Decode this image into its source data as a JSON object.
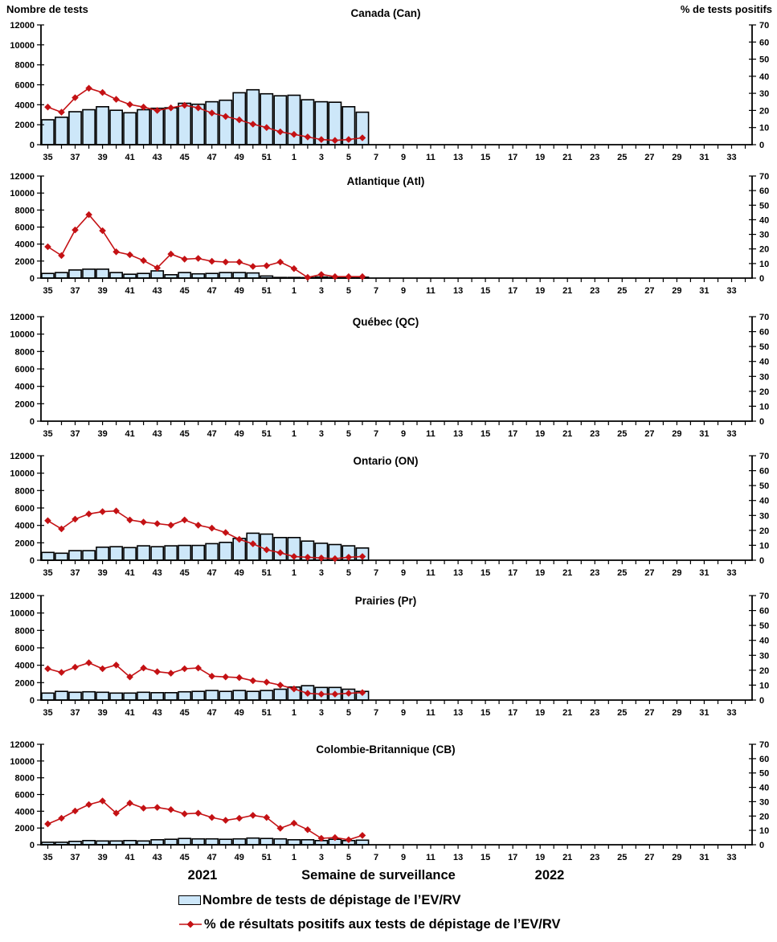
{
  "header": {
    "left_axis_title": "Nombre de tests",
    "right_axis_title": "% de tests positifs"
  },
  "footer": {
    "year_left": "2021",
    "x_axis_title": "Semaine de surveillance",
    "year_right": "2022"
  },
  "legend": {
    "tests_label": "Nombre de tests de dépistage de l’EV/RV",
    "positivity_label": "% de résultats positifs aux tests de dépistage de l’EV/RV"
  },
  "colors": {
    "bar_fill": "#CDE7F9",
    "bar_border": "#000000",
    "line": "#C41114",
    "axis": "#000000"
  },
  "x_axis": {
    "all_weeks": [
      35,
      36,
      37,
      38,
      39,
      40,
      41,
      42,
      43,
      44,
      45,
      46,
      47,
      48,
      49,
      50,
      51,
      52,
      1,
      2,
      3,
      4,
      5,
      6,
      7,
      8,
      9,
      10,
      11,
      12,
      13,
      14,
      15,
      16,
      17,
      18,
      19,
      20,
      21,
      22,
      23,
      24,
      25,
      26,
      27,
      28,
      29,
      30,
      31,
      32,
      33,
      34
    ],
    "labeled_weeks": [
      35,
      37,
      39,
      41,
      43,
      45,
      47,
      49,
      51,
      1,
      3,
      5,
      7,
      9,
      11,
      13,
      15,
      17,
      19,
      21,
      23,
      25,
      27,
      29,
      31,
      33
    ]
  },
  "chart_data": [
    {
      "type": "bar+line",
      "title": "Canada (Can)",
      "categories": [
        35,
        36,
        37,
        38,
        39,
        40,
        41,
        42,
        43,
        44,
        45,
        46,
        47,
        48,
        49,
        50,
        51,
        52,
        1,
        2,
        3,
        4,
        5,
        6
      ],
      "y_left": {
        "min": 0,
        "max": 12000,
        "step": 2000
      },
      "y_right": {
        "min": 0,
        "max": 70,
        "step": 10
      },
      "series": [
        {
          "name": "Nombre de tests de dépistage de l’EV/RV",
          "axis": "left",
          "values": [
            2500,
            2750,
            3300,
            3500,
            3800,
            3450,
            3200,
            3500,
            3650,
            3700,
            4150,
            4050,
            4300,
            4450,
            5200,
            5500,
            5100,
            4900,
            4950,
            4500,
            4300,
            4250,
            3800,
            3250
          ]
        },
        {
          "name": "% de résultats positifs aux tests de dépistage de l’EV/RV",
          "axis": "right",
          "values": [
            22,
            19,
            27.5,
            33,
            30.5,
            26.5,
            23.5,
            22,
            20,
            21.5,
            23,
            21.5,
            18.5,
            16.5,
            14.5,
            12,
            10,
            7.5,
            6,
            4.5,
            3,
            2.5,
            3,
            4
          ]
        }
      ]
    },
    {
      "type": "bar+line",
      "title": "Atlantique (Atl)",
      "categories": [
        35,
        36,
        37,
        38,
        39,
        40,
        41,
        42,
        43,
        44,
        45,
        46,
        47,
        48,
        49,
        50,
        51,
        52,
        1,
        2,
        3,
        4,
        5,
        6
      ],
      "y_left": {
        "min": 0,
        "max": 12000,
        "step": 2000
      },
      "y_right": {
        "min": 0,
        "max": 70,
        "step": 10
      },
      "series": [
        {
          "name": "Nombre de tests de dépistage de l’EV/RV",
          "axis": "left",
          "values": [
            550,
            650,
            950,
            1050,
            1050,
            650,
            450,
            550,
            850,
            400,
            650,
            500,
            550,
            650,
            650,
            600,
            250,
            80,
            80,
            60,
            120,
            80,
            80,
            100
          ]
        },
        {
          "name": "% de résultats positifs aux tests de dépistage de l’EV/RV",
          "axis": "right",
          "values": [
            21.5,
            15.5,
            33,
            43.5,
            32.5,
            18,
            16,
            12,
            7,
            16.5,
            13,
            13.5,
            11.5,
            11,
            11,
            8,
            8.5,
            11,
            6.5,
            0.5,
            2.5,
            1,
            1,
            1
          ]
        }
      ]
    },
    {
      "type": "bar+line",
      "title": "Québec (QC)",
      "categories": [],
      "y_left": {
        "min": 0,
        "max": 12000,
        "step": 2000
      },
      "y_right": {
        "min": 0,
        "max": 70,
        "step": 10
      },
      "series": [
        {
          "name": "Nombre de tests de dépistage de l’EV/RV",
          "axis": "left",
          "values": []
        },
        {
          "name": "% de résultats positifs aux tests de dépistage de l’EV/RV",
          "axis": "right",
          "values": []
        }
      ]
    },
    {
      "type": "bar+line",
      "title": "Ontario (ON)",
      "categories": [
        35,
        36,
        37,
        38,
        39,
        40,
        41,
        42,
        43,
        44,
        45,
        46,
        47,
        48,
        49,
        50,
        51,
        52,
        1,
        2,
        3,
        4,
        5,
        6
      ],
      "y_left": {
        "min": 0,
        "max": 12000,
        "step": 2000
      },
      "y_right": {
        "min": 0,
        "max": 70,
        "step": 10
      },
      "series": [
        {
          "name": "Nombre de tests de dépistage de l’EV/RV",
          "axis": "left",
          "values": [
            900,
            800,
            1100,
            1100,
            1500,
            1550,
            1450,
            1650,
            1550,
            1650,
            1700,
            1700,
            1900,
            2050,
            2500,
            3100,
            3000,
            2600,
            2600,
            2200,
            1950,
            1800,
            1650,
            1400
          ]
        },
        {
          "name": "% de résultats positifs aux tests de dépistage de l’EV/RV",
          "axis": "right",
          "values": [
            26.5,
            21,
            27.5,
            31,
            32.5,
            33,
            27,
            25.5,
            24.5,
            23.5,
            27,
            23.5,
            21.5,
            18.5,
            14,
            11,
            7,
            5,
            2.5,
            2,
            1.5,
            1,
            2,
            2.5
          ]
        }
      ]
    },
    {
      "type": "bar+line",
      "title": "Prairies (Pr)",
      "categories": [
        35,
        36,
        37,
        38,
        39,
        40,
        41,
        42,
        43,
        44,
        45,
        46,
        47,
        48,
        49,
        50,
        51,
        52,
        1,
        2,
        3,
        4,
        5,
        6
      ],
      "y_left": {
        "min": 0,
        "max": 12000,
        "step": 2000
      },
      "y_right": {
        "min": 0,
        "max": 70,
        "step": 10
      },
      "series": [
        {
          "name": "Nombre de tests de dépistage de l’EV/RV",
          "axis": "left",
          "values": [
            800,
            1000,
            900,
            950,
            900,
            800,
            800,
            900,
            850,
            850,
            950,
            1000,
            1100,
            1000,
            1100,
            1000,
            1100,
            1250,
            1500,
            1650,
            1450,
            1450,
            1250,
            1000
          ]
        },
        {
          "name": "% de résultats positifs aux tests de dépistage de l’EV/RV",
          "axis": "right",
          "values": [
            21,
            18.5,
            22,
            25,
            21,
            23.5,
            15.5,
            21.5,
            19,
            18,
            21,
            21.5,
            16,
            15.5,
            15,
            13,
            12,
            10,
            7.5,
            4.5,
            4,
            4,
            4.5,
            5
          ]
        }
      ]
    },
    {
      "type": "bar+line",
      "title": "Colombie-Britannique (CB)",
      "categories": [
        35,
        36,
        37,
        38,
        39,
        40,
        41,
        42,
        43,
        44,
        45,
        46,
        47,
        48,
        49,
        50,
        51,
        52,
        1,
        2,
        3,
        4,
        5,
        6
      ],
      "y_left": {
        "min": 0,
        "max": 12000,
        "step": 2000
      },
      "y_right": {
        "min": 0,
        "max": 70,
        "step": 10
      },
      "series": [
        {
          "name": "Nombre de tests de dépistage de l’EV/RV",
          "axis": "left",
          "values": [
            300,
            300,
            400,
            500,
            450,
            450,
            500,
            450,
            600,
            650,
            750,
            700,
            700,
            650,
            700,
            800,
            750,
            700,
            600,
            600,
            500,
            650,
            500,
            550
          ]
        },
        {
          "name": "% de résultats positifs aux tests de dépistage de l’EV/RV",
          "axis": "right",
          "values": [
            14.5,
            18.5,
            23.5,
            28,
            30.5,
            22,
            29,
            25.5,
            26,
            24.5,
            21.5,
            22,
            19,
            17,
            18.5,
            20.5,
            19,
            11.5,
            15,
            10.5,
            4.5,
            5,
            3.5,
            6.5
          ]
        }
      ]
    }
  ]
}
